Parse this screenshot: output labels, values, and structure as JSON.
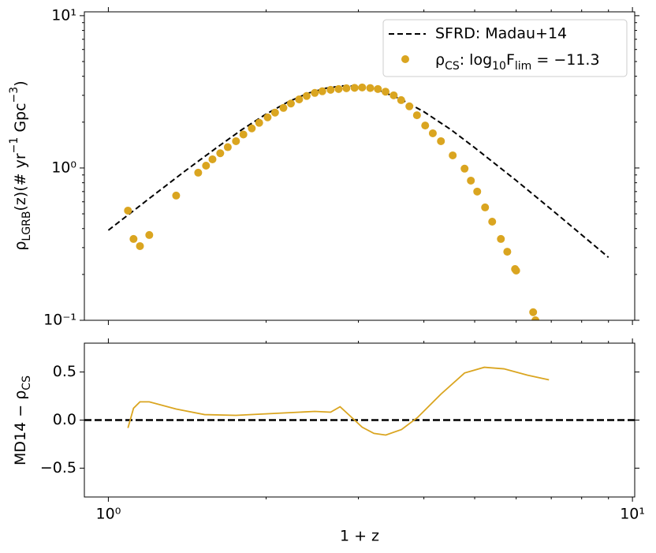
{
  "chart_data": [
    {
      "type": "scatter",
      "ylabel": [
        "ρ",
        "LGRB",
        "(z)(# yr",
        "−1",
        " Gpc",
        "−3",
        ")"
      ],
      "xlim": [
        0.9,
        10.1
      ],
      "xscale": "log",
      "ylim": [
        0.1,
        10.6
      ],
      "yscale": "log",
      "yticks": [
        {
          "value": 0.1,
          "label": "10⁻¹"
        },
        {
          "value": 1,
          "label": "10⁰"
        },
        {
          "value": 10,
          "label": "10¹"
        }
      ],
      "yminor_ticks": [
        0.2,
        0.3,
        0.4,
        0.5,
        0.6,
        0.7,
        0.8,
        0.9,
        2,
        3,
        4,
        5,
        6,
        7,
        8,
        9
      ],
      "legend": "upper right",
      "series": [
        {
          "name": "SFRD: Madau+14",
          "kind": "line",
          "dash": true,
          "color": "#000000",
          "x": [
            1,
            1.2,
            1.4,
            1.6,
            1.8,
            2,
            2.2,
            2.4,
            2.6,
            2.8,
            3,
            3.3,
            3.6,
            4,
            4.5,
            5,
            6,
            7,
            8,
            9
          ],
          "values": [
            0.39,
            0.635,
            0.954,
            1.34,
            1.79,
            2.26,
            2.71,
            3.09,
            3.34,
            3.46,
            3.44,
            3.21,
            2.85,
            2.34,
            1.79,
            1.36,
            0.828,
            0.535,
            0.364,
            0.259
          ]
        },
        {
          "name": [
            "ρ",
            "CS",
            ": log",
            "10",
            "F",
            "lim",
            " = −11.3"
          ],
          "kind": "points",
          "color": "#daa520",
          "x": [
            1.09,
            1.117,
            1.149,
            1.197,
            1.347,
            1.484,
            1.536,
            1.58,
            1.635,
            1.69,
            1.752,
            1.81,
            1.878,
            1.94,
            2.013,
            2.08,
            2.158,
            2.23,
            2.312,
            2.39,
            2.477,
            2.56,
            2.655,
            2.75,
            2.846,
            2.95,
            3.05,
            3.16,
            3.268,
            3.38,
            3.503,
            3.62,
            3.753,
            3.88,
            4.023,
            4.16,
            4.311,
            4.54,
            4.783,
            4.917,
            5.056,
            5.234,
            5.4,
            5.61,
            5.77,
            5.97,
            6.0,
            6.465,
            6.53
          ],
          "values": [
            0.525,
            0.342,
            0.307,
            0.363,
            0.659,
            0.931,
            1.036,
            1.14,
            1.25,
            1.37,
            1.5,
            1.66,
            1.82,
            1.98,
            2.15,
            2.31,
            2.48,
            2.65,
            2.82,
            2.97,
            3.11,
            3.19,
            3.26,
            3.3,
            3.34,
            3.36,
            3.38,
            3.35,
            3.3,
            3.17,
            3.0,
            2.79,
            2.54,
            2.22,
            1.9,
            1.69,
            1.5,
            1.21,
            0.99,
            0.826,
            0.7,
            0.551,
            0.444,
            0.342,
            0.282,
            0.217,
            0.212,
            0.113,
            0.1
          ]
        }
      ]
    },
    {
      "type": "line",
      "xlabel": "1 + z",
      "ylabel": [
        "MD14 − ρ",
        "CS"
      ],
      "xlim": [
        0.9,
        10.1
      ],
      "xscale": "log",
      "xticks": [
        {
          "value": 1,
          "label": "10⁰"
        },
        {
          "value": 10,
          "label": "10¹"
        }
      ],
      "xminor_ticks": [
        2,
        3,
        4,
        5,
        6,
        7,
        8,
        9
      ],
      "ylim": [
        -0.8,
        0.8
      ],
      "yticks": [
        {
          "value": 0.5,
          "label": "0.5"
        },
        {
          "value": 0,
          "label": "0.0"
        },
        {
          "value": -0.5,
          "label": "−0.5"
        }
      ],
      "hline": 0,
      "series": [
        {
          "color": "#daa520",
          "x": [
            1.09,
            1.117,
            1.149,
            1.197,
            1.347,
            1.526,
            1.752,
            2.158,
            2.477,
            2.655,
            2.768,
            2.895,
            3.05,
            3.212,
            3.383,
            3.626,
            3.886,
            4.311,
            4.783,
            5.216,
            5.687,
            6.31,
            6.93
          ],
          "values": [
            -0.082,
            0.123,
            0.19,
            0.19,
            0.115,
            0.057,
            0.049,
            0.074,
            0.09,
            0.082,
            0.139,
            0.041,
            -0.074,
            -0.139,
            -0.156,
            -0.098,
            0.025,
            0.27,
            0.49,
            0.549,
            0.533,
            0.467,
            0.418
          ]
        }
      ]
    }
  ]
}
